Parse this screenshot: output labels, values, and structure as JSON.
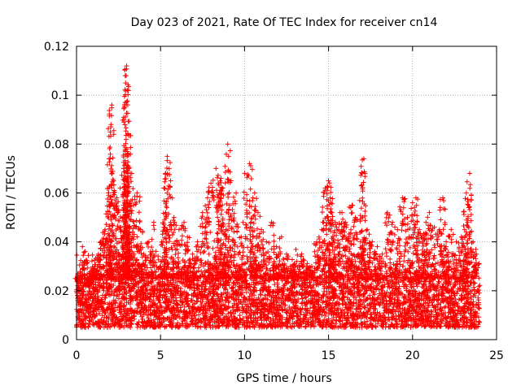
{
  "chart_data": {
    "type": "scatter",
    "title": "Day 023 of 2021, Rate Of TEC Index for receiver cn14",
    "xlabel": "GPS time / hours",
    "ylabel": "ROTI / TECUs",
    "xlim": [
      0,
      25
    ],
    "ylim": [
      0,
      0.12
    ],
    "x_ticks": [
      0,
      5,
      10,
      15,
      20,
      25
    ],
    "x_tick_labels": [
      "0",
      "5",
      "10",
      "15",
      "20",
      "25"
    ],
    "y_ticks": [
      0,
      0.02,
      0.04,
      0.06,
      0.08,
      0.1,
      0.12
    ],
    "y_tick_labels": [
      "0",
      "0.02",
      "0.04",
      "0.06",
      "0.08",
      "0.1",
      "0.12"
    ],
    "grid": true,
    "marker": "+",
    "marker_color": "#ff0000",
    "series": [
      {
        "name": "ROTI",
        "x": [
          0.1,
          0.2,
          0.35,
          0.5,
          0.7,
          0.9,
          1.1,
          1.3,
          1.5,
          1.7,
          1.9,
          2.0,
          2.05,
          2.1,
          2.2,
          2.4,
          2.6,
          2.8,
          2.9,
          2.92,
          2.95,
          2.98,
          3.0,
          3.05,
          3.1,
          3.2,
          3.4,
          3.6,
          3.8,
          4.0,
          4.3,
          4.6,
          5.0,
          5.2,
          5.3,
          5.4,
          5.6,
          5.8,
          6.1,
          6.4,
          6.6,
          6.9,
          7.2,
          7.5,
          7.8,
          8.0,
          8.3,
          8.5,
          8.6,
          8.7,
          8.9,
          9.0,
          9.2,
          9.5,
          9.8,
          10.0,
          10.3,
          10.5,
          10.6,
          10.8,
          11.0,
          11.3,
          11.6,
          11.9,
          12.2,
          12.5,
          12.8,
          13.1,
          13.4,
          13.7,
          14.0,
          14.3,
          14.6,
          14.8,
          15.0,
          15.1,
          15.2,
          15.4,
          15.6,
          15.8,
          16.0,
          16.2,
          16.4,
          16.6,
          16.9,
          17.0,
          17.1,
          17.3,
          17.6,
          17.9,
          18.2,
          18.5,
          18.8,
          19.1,
          19.4,
          19.7,
          20.0,
          20.2,
          20.4,
          20.6,
          20.8,
          21.0,
          21.3,
          21.6,
          21.8,
          22.0,
          22.3,
          22.6,
          22.9,
          23.1,
          23.2,
          23.4,
          23.6,
          23.8
        ],
        "y": [
          0.025,
          0.018,
          0.038,
          0.032,
          0.022,
          0.028,
          0.03,
          0.035,
          0.04,
          0.045,
          0.06,
          0.074,
          0.088,
          0.096,
          0.065,
          0.058,
          0.062,
          0.07,
          0.097,
          0.105,
          0.108,
          0.112,
          0.078,
          0.084,
          0.07,
          0.068,
          0.055,
          0.06,
          0.045,
          0.035,
          0.04,
          0.048,
          0.03,
          0.062,
          0.068,
          0.075,
          0.065,
          0.05,
          0.045,
          0.048,
          0.042,
          0.035,
          0.04,
          0.052,
          0.058,
          0.064,
          0.07,
          0.06,
          0.066,
          0.062,
          0.045,
          0.08,
          0.065,
          0.06,
          0.042,
          0.068,
          0.072,
          0.058,
          0.06,
          0.052,
          0.045,
          0.04,
          0.048,
          0.038,
          0.042,
          0.035,
          0.03,
          0.032,
          0.035,
          0.03,
          0.03,
          0.04,
          0.045,
          0.062,
          0.065,
          0.058,
          0.052,
          0.048,
          0.045,
          0.052,
          0.048,
          0.042,
          0.055,
          0.05,
          0.04,
          0.068,
          0.074,
          0.045,
          0.04,
          0.038,
          0.035,
          0.052,
          0.048,
          0.045,
          0.058,
          0.05,
          0.056,
          0.058,
          0.045,
          0.04,
          0.048,
          0.052,
          0.046,
          0.045,
          0.058,
          0.04,
          0.045,
          0.04,
          0.042,
          0.045,
          0.06,
          0.068,
          0.04,
          0.035
        ]
      }
    ],
    "background_band": {
      "description_values": "dense baseline ROTI between about 0.005 and 0.025 across 0-24 h",
      "y_low": 0.005,
      "y_high": 0.025,
      "x_start": 0,
      "x_end": 24
    }
  }
}
